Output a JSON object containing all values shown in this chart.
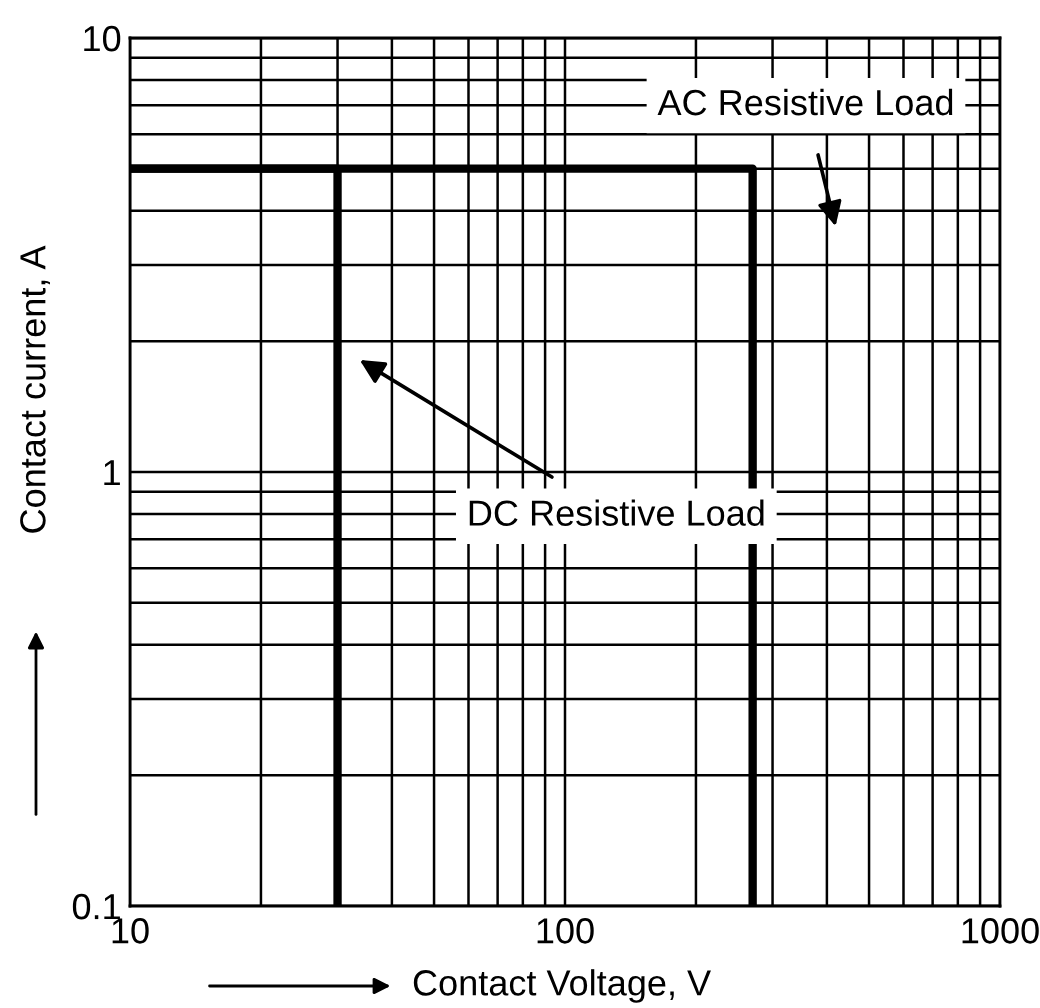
{
  "chart_data": {
    "type": "line",
    "xlabel": "Contact Voltage, V",
    "ylabel": "Contact current, A",
    "log": "xy",
    "xlim": [
      10,
      1000
    ],
    "ylim": [
      0.1,
      10
    ],
    "xticks": [
      10,
      100,
      1000
    ],
    "yticks": [
      0.1,
      1,
      10
    ],
    "grid": true,
    "legend": false,
    "marker": "none",
    "line_style": "solid",
    "series": [
      {
        "color": "#000000",
        "x": [
          10,
          270,
          270
        ],
        "values": [
          5,
          5,
          0.1
        ]
      },
      {
        "color": "#000000",
        "x": [
          10,
          30,
          30
        ],
        "values": [
          5,
          5,
          0.1
        ]
      }
    ],
    "annotations": [
      "AC Resistive Load",
      "DC Resistive Load"
    ]
  }
}
